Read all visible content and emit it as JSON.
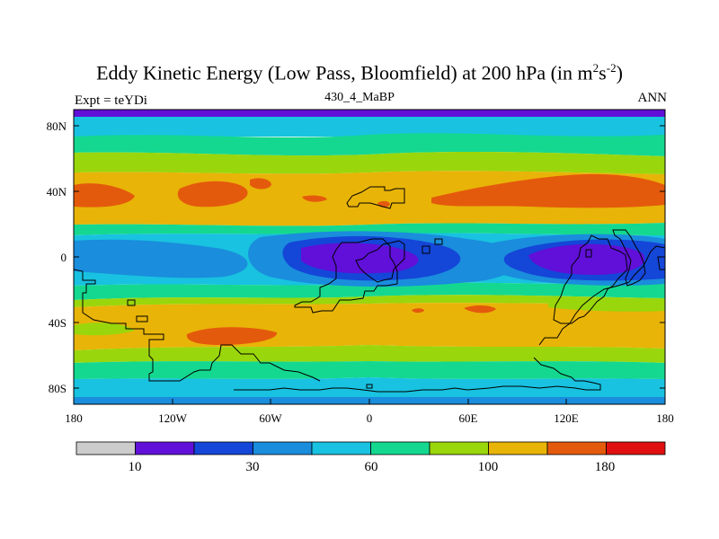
{
  "header": {
    "title": "Eddy Kinetic Energy (Low Pass, Bloomfield) at 200 hPa (in m",
    "title_sup1": "2",
    "title_mid": "s",
    "title_sup2": "-2",
    "title_end": ")",
    "subtitle": "430_4_MaBP",
    "left_label": "Expt = teYDi",
    "right_label": "ANN"
  },
  "axes": {
    "y_ticks": [
      "80N",
      "40N",
      "0",
      "40S",
      "80S"
    ],
    "x_ticks": [
      "180",
      "120W",
      "60W",
      "0",
      "60E",
      "120E",
      "180"
    ]
  },
  "colorbar": {
    "colors": [
      "#cccccc",
      "#6010d8",
      "#1446d8",
      "#1a8ddc",
      "#18c2e0",
      "#14d890",
      "#9ad60c",
      "#e8b408",
      "#e45a0c",
      "#e01010"
    ],
    "labels": [
      "10",
      "30",
      "60",
      "100",
      "180"
    ]
  },
  "palette": {
    "violet": "#6010d8",
    "blue": "#1446d8",
    "mid_blue": "#1a8ddc",
    "cyan": "#18c2e0",
    "green": "#14d890",
    "yellowgreen": "#9ad60c",
    "yellow": "#e8b408",
    "orange": "#e45a0c"
  }
}
